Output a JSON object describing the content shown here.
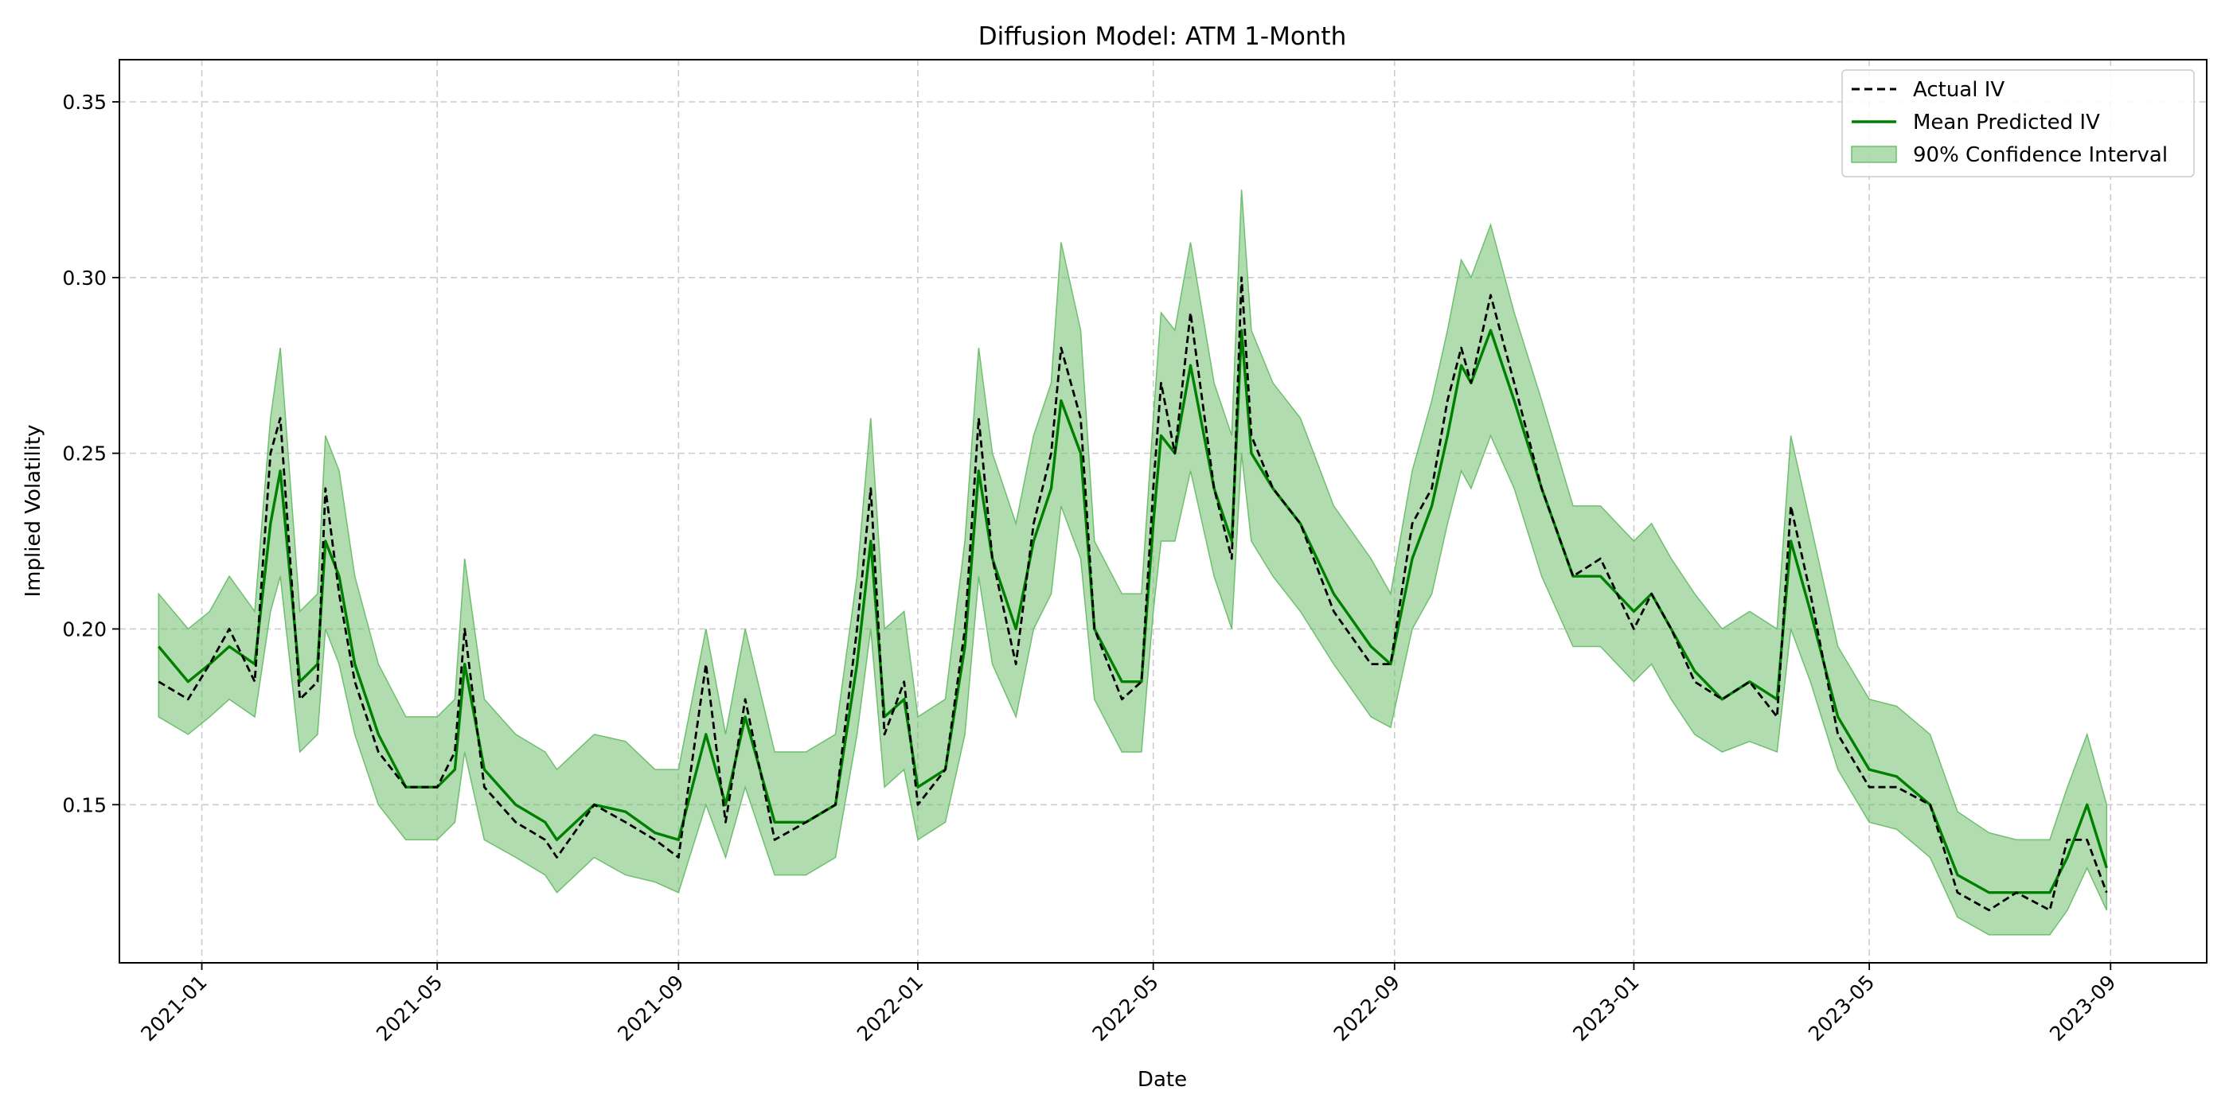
{
  "chart_data": {
    "type": "line",
    "title": "Diffusion Model: ATM 1-Month",
    "xlabel": "Date",
    "ylabel": "Implied Volatility",
    "x_tick_labels": [
      "2021-01",
      "2021-05",
      "2021-09",
      "2022-01",
      "2022-05",
      "2022-09",
      "2023-01",
      "2023-05",
      "2023-09"
    ],
    "y_tick_labels": [
      "0.15",
      "0.20",
      "0.25",
      "0.30",
      "0.35"
    ],
    "x_range": [
      "2020-11-20",
      "2023-10-20"
    ],
    "ylim": [
      0.105,
      0.362
    ],
    "grid": true,
    "legend_position": "top-right",
    "colors": {
      "actual": "#000000",
      "predicted": "#008000",
      "interval": "#6fbf6f"
    },
    "series": [
      {
        "name": "Actual IV",
        "style": "dashed",
        "x": [
          "2020-12-10",
          "2020-12-25",
          "2021-01-05",
          "2021-01-15",
          "2021-01-28",
          "2021-02-05",
          "2021-02-10",
          "2021-02-20",
          "2021-03-01",
          "2021-03-05",
          "2021-03-12",
          "2021-03-20",
          "2021-04-01",
          "2021-04-15",
          "2021-05-01",
          "2021-05-10",
          "2021-05-15",
          "2021-05-25",
          "2021-06-10",
          "2021-06-25",
          "2021-07-01",
          "2021-07-20",
          "2021-08-05",
          "2021-08-20",
          "2021-09-01",
          "2021-09-15",
          "2021-09-25",
          "2021-10-05",
          "2021-10-20",
          "2021-11-05",
          "2021-11-20",
          "2021-12-01",
          "2021-12-08",
          "2021-12-15",
          "2021-12-25",
          "2022-01-01",
          "2022-01-15",
          "2022-01-25",
          "2022-02-01",
          "2022-02-08",
          "2022-02-20",
          "2022-03-01",
          "2022-03-10",
          "2022-03-15",
          "2022-03-25",
          "2022-04-01",
          "2022-04-15",
          "2022-04-25",
          "2022-05-01",
          "2022-05-05",
          "2022-05-12",
          "2022-05-20",
          "2022-06-01",
          "2022-06-10",
          "2022-06-15",
          "2022-06-20",
          "2022-07-01",
          "2022-07-15",
          "2022-08-01",
          "2022-08-20",
          "2022-08-30",
          "2022-09-10",
          "2022-09-20",
          "2022-09-28",
          "2022-10-05",
          "2022-10-10",
          "2022-10-20",
          "2022-11-01",
          "2022-11-15",
          "2022-12-01",
          "2022-12-15",
          "2023-01-01",
          "2023-01-10",
          "2023-01-20",
          "2023-02-01",
          "2023-02-15",
          "2023-03-01",
          "2023-03-15",
          "2023-03-22",
          "2023-04-01",
          "2023-04-15",
          "2023-05-01",
          "2023-05-15",
          "2023-06-01",
          "2023-06-15",
          "2023-07-01",
          "2023-07-15",
          "2023-08-01",
          "2023-08-10",
          "2023-08-20",
          "2023-08-30"
        ],
        "y": [
          0.185,
          0.18,
          0.19,
          0.2,
          0.185,
          0.25,
          0.26,
          0.18,
          0.185,
          0.24,
          0.21,
          0.185,
          0.165,
          0.155,
          0.155,
          0.165,
          0.2,
          0.155,
          0.145,
          0.14,
          0.135,
          0.15,
          0.145,
          0.14,
          0.135,
          0.19,
          0.145,
          0.18,
          0.14,
          0.145,
          0.15,
          0.2,
          0.24,
          0.17,
          0.185,
          0.15,
          0.16,
          0.2,
          0.26,
          0.22,
          0.19,
          0.23,
          0.25,
          0.28,
          0.26,
          0.2,
          0.18,
          0.185,
          0.24,
          0.27,
          0.25,
          0.29,
          0.24,
          0.22,
          0.3,
          0.255,
          0.24,
          0.23,
          0.205,
          0.19,
          0.19,
          0.23,
          0.24,
          0.265,
          0.28,
          0.27,
          0.295,
          0.27,
          0.24,
          0.215,
          0.22,
          0.2,
          0.21,
          0.2,
          0.185,
          0.18,
          0.185,
          0.175,
          0.235,
          0.21,
          0.17,
          0.155,
          0.155,
          0.15,
          0.125,
          0.12,
          0.125,
          0.12,
          0.14,
          0.14,
          0.125
        ]
      },
      {
        "name": "Mean Predicted IV",
        "style": "solid",
        "x": [
          "2020-12-10",
          "2020-12-25",
          "2021-01-05",
          "2021-01-15",
          "2021-01-28",
          "2021-02-05",
          "2021-02-10",
          "2021-02-20",
          "2021-03-01",
          "2021-03-05",
          "2021-03-12",
          "2021-03-20",
          "2021-04-01",
          "2021-04-15",
          "2021-05-01",
          "2021-05-10",
          "2021-05-15",
          "2021-05-25",
          "2021-06-10",
          "2021-06-25",
          "2021-07-01",
          "2021-07-20",
          "2021-08-05",
          "2021-08-20",
          "2021-09-01",
          "2021-09-15",
          "2021-09-25",
          "2021-10-05",
          "2021-10-20",
          "2021-11-05",
          "2021-11-20",
          "2021-12-01",
          "2021-12-08",
          "2021-12-15",
          "2021-12-25",
          "2022-01-01",
          "2022-01-15",
          "2022-01-25",
          "2022-02-01",
          "2022-02-08",
          "2022-02-20",
          "2022-03-01",
          "2022-03-10",
          "2022-03-15",
          "2022-03-25",
          "2022-04-01",
          "2022-04-15",
          "2022-04-25",
          "2022-05-01",
          "2022-05-05",
          "2022-05-12",
          "2022-05-20",
          "2022-06-01",
          "2022-06-10",
          "2022-06-15",
          "2022-06-20",
          "2022-07-01",
          "2022-07-15",
          "2022-08-01",
          "2022-08-20",
          "2022-08-30",
          "2022-09-10",
          "2022-09-20",
          "2022-09-28",
          "2022-10-05",
          "2022-10-10",
          "2022-10-20",
          "2022-11-01",
          "2022-11-15",
          "2022-12-01",
          "2022-12-15",
          "2023-01-01",
          "2023-01-10",
          "2023-01-20",
          "2023-02-01",
          "2023-02-15",
          "2023-03-01",
          "2023-03-15",
          "2023-03-22",
          "2023-04-01",
          "2023-04-15",
          "2023-05-01",
          "2023-05-15",
          "2023-06-01",
          "2023-06-15",
          "2023-07-01",
          "2023-07-15",
          "2023-08-01",
          "2023-08-10",
          "2023-08-20",
          "2023-08-30"
        ],
        "y": [
          0.195,
          0.185,
          0.19,
          0.195,
          0.19,
          0.23,
          0.245,
          0.185,
          0.19,
          0.225,
          0.215,
          0.19,
          0.17,
          0.155,
          0.155,
          0.16,
          0.19,
          0.16,
          0.15,
          0.145,
          0.14,
          0.15,
          0.148,
          0.142,
          0.14,
          0.17,
          0.15,
          0.175,
          0.145,
          0.145,
          0.15,
          0.19,
          0.225,
          0.175,
          0.18,
          0.155,
          0.16,
          0.195,
          0.245,
          0.22,
          0.2,
          0.225,
          0.24,
          0.265,
          0.25,
          0.2,
          0.185,
          0.185,
          0.23,
          0.255,
          0.25,
          0.275,
          0.24,
          0.225,
          0.285,
          0.25,
          0.24,
          0.23,
          0.21,
          0.195,
          0.19,
          0.22,
          0.235,
          0.255,
          0.275,
          0.27,
          0.285,
          0.265,
          0.24,
          0.215,
          0.215,
          0.205,
          0.21,
          0.2,
          0.188,
          0.18,
          0.185,
          0.18,
          0.225,
          0.205,
          0.175,
          0.16,
          0.158,
          0.15,
          0.13,
          0.125,
          0.125,
          0.125,
          0.135,
          0.15,
          0.132
        ]
      }
    ],
    "confidence_interval": {
      "name": "90% Confidence Interval",
      "x": [
        "2020-12-10",
        "2020-12-25",
        "2021-01-05",
        "2021-01-15",
        "2021-01-28",
        "2021-02-05",
        "2021-02-10",
        "2021-02-20",
        "2021-03-01",
        "2021-03-05",
        "2021-03-12",
        "2021-03-20",
        "2021-04-01",
        "2021-04-15",
        "2021-05-01",
        "2021-05-10",
        "2021-05-15",
        "2021-05-25",
        "2021-06-10",
        "2021-06-25",
        "2021-07-01",
        "2021-07-20",
        "2021-08-05",
        "2021-08-20",
        "2021-09-01",
        "2021-09-15",
        "2021-09-25",
        "2021-10-05",
        "2021-10-20",
        "2021-11-05",
        "2021-11-20",
        "2021-12-01",
        "2021-12-08",
        "2021-12-15",
        "2021-12-25",
        "2022-01-01",
        "2022-01-15",
        "2022-01-25",
        "2022-02-01",
        "2022-02-08",
        "2022-02-20",
        "2022-03-01",
        "2022-03-10",
        "2022-03-15",
        "2022-03-25",
        "2022-04-01",
        "2022-04-15",
        "2022-04-25",
        "2022-05-01",
        "2022-05-05",
        "2022-05-12",
        "2022-05-20",
        "2022-06-01",
        "2022-06-10",
        "2022-06-15",
        "2022-06-20",
        "2022-07-01",
        "2022-07-15",
        "2022-08-01",
        "2022-08-20",
        "2022-08-30",
        "2022-09-10",
        "2022-09-20",
        "2022-09-28",
        "2022-10-05",
        "2022-10-10",
        "2022-10-20",
        "2022-11-01",
        "2022-11-15",
        "2022-12-01",
        "2022-12-15",
        "2023-01-01",
        "2023-01-10",
        "2023-01-20",
        "2023-02-01",
        "2023-02-15",
        "2023-03-01",
        "2023-03-15",
        "2023-03-22",
        "2023-04-01",
        "2023-04-15",
        "2023-05-01",
        "2023-05-15",
        "2023-06-01",
        "2023-06-15",
        "2023-07-01",
        "2023-07-15",
        "2023-08-01",
        "2023-08-10",
        "2023-08-20",
        "2023-08-30"
      ],
      "lower": [
        0.175,
        0.17,
        0.175,
        0.18,
        0.175,
        0.205,
        0.215,
        0.165,
        0.17,
        0.2,
        0.19,
        0.17,
        0.15,
        0.14,
        0.14,
        0.145,
        0.165,
        0.14,
        0.135,
        0.13,
        0.125,
        0.135,
        0.13,
        0.128,
        0.125,
        0.15,
        0.135,
        0.155,
        0.13,
        0.13,
        0.135,
        0.17,
        0.2,
        0.155,
        0.16,
        0.14,
        0.145,
        0.17,
        0.215,
        0.19,
        0.175,
        0.2,
        0.21,
        0.235,
        0.22,
        0.18,
        0.165,
        0.165,
        0.205,
        0.225,
        0.225,
        0.245,
        0.215,
        0.2,
        0.25,
        0.225,
        0.215,
        0.205,
        0.19,
        0.175,
        0.172,
        0.2,
        0.21,
        0.23,
        0.245,
        0.24,
        0.255,
        0.24,
        0.215,
        0.195,
        0.195,
        0.185,
        0.19,
        0.18,
        0.17,
        0.165,
        0.168,
        0.165,
        0.2,
        0.185,
        0.16,
        0.145,
        0.143,
        0.135,
        0.118,
        0.113,
        0.113,
        0.113,
        0.12,
        0.132,
        0.12
      ],
      "upper": [
        0.21,
        0.2,
        0.205,
        0.215,
        0.205,
        0.26,
        0.28,
        0.205,
        0.21,
        0.255,
        0.245,
        0.215,
        0.19,
        0.175,
        0.175,
        0.18,
        0.22,
        0.18,
        0.17,
        0.165,
        0.16,
        0.17,
        0.168,
        0.16,
        0.16,
        0.2,
        0.17,
        0.2,
        0.165,
        0.165,
        0.17,
        0.215,
        0.26,
        0.2,
        0.205,
        0.175,
        0.18,
        0.225,
        0.28,
        0.25,
        0.23,
        0.255,
        0.27,
        0.31,
        0.285,
        0.225,
        0.21,
        0.21,
        0.26,
        0.29,
        0.285,
        0.31,
        0.27,
        0.255,
        0.325,
        0.285,
        0.27,
        0.26,
        0.235,
        0.22,
        0.21,
        0.245,
        0.265,
        0.285,
        0.305,
        0.3,
        0.315,
        0.29,
        0.265,
        0.235,
        0.235,
        0.225,
        0.23,
        0.22,
        0.21,
        0.2,
        0.205,
        0.2,
        0.255,
        0.23,
        0.195,
        0.18,
        0.178,
        0.17,
        0.148,
        0.142,
        0.14,
        0.14,
        0.155,
        0.17,
        0.15
      ]
    }
  }
}
